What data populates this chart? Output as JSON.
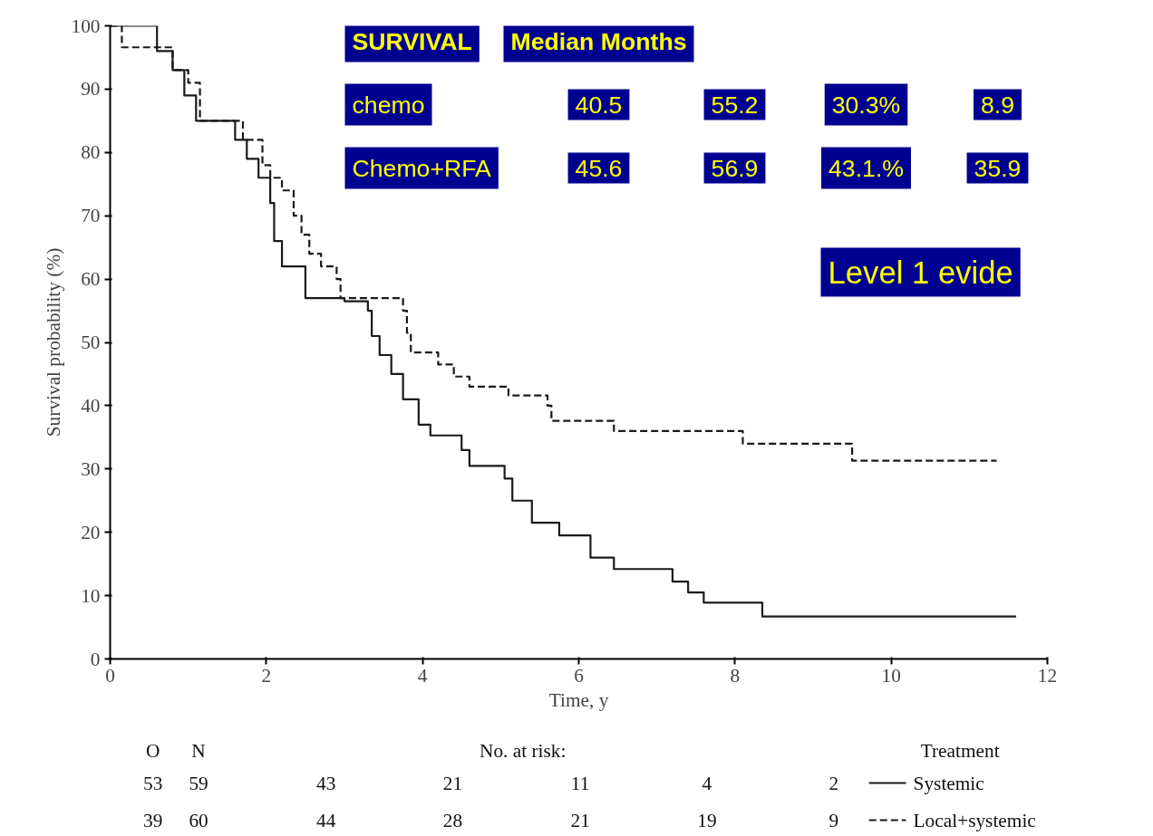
{
  "chart_data": {
    "type": "step",
    "xlabel": "Time, y",
    "ylabel": "Survival probability (%)",
    "xlim": [
      0,
      12
    ],
    "ylim": [
      0,
      100
    ],
    "xticks": [
      0,
      2,
      4,
      6,
      8,
      10,
      12
    ],
    "yticks": [
      0,
      10,
      20,
      30,
      40,
      50,
      60,
      70,
      80,
      90,
      100
    ],
    "grid": false,
    "legend": "bottom right",
    "legend_title": "Treatment",
    "marker": "none",
    "series": [
      {
        "name": "Systemic",
        "color": "#1a1a1a",
        "line_style": "solid",
        "x": [
          0,
          0.6,
          0.8,
          0.95,
          1.1,
          1.6,
          1.75,
          1.9,
          2.05,
          2.1,
          2.2,
          2.5,
          3.0,
          3.3,
          3.35,
          3.45,
          3.6,
          3.75,
          3.95,
          4.1,
          4.5,
          4.6,
          5.05,
          5.15,
          5.4,
          5.75,
          6.15,
          6.45,
          7.2,
          7.4,
          7.6,
          8.35,
          11.6
        ],
        "values": [
          100,
          96,
          93,
          89,
          85,
          82,
          79,
          76,
          72,
          66,
          62,
          57,
          56.5,
          55,
          51,
          48,
          45,
          41,
          37,
          35.3,
          33,
          30.5,
          28.5,
          25,
          21.5,
          19.5,
          16,
          14.2,
          12.2,
          10.5,
          8.9,
          6.7,
          6.7
        ]
      },
      {
        "name": "Local+systemic",
        "color": "#1a1a1a",
        "line_style": "dashed",
        "x": [
          0,
          0.15,
          0.8,
          1.0,
          1.15,
          1.7,
          1.95,
          2.05,
          2.2,
          2.35,
          2.45,
          2.55,
          2.7,
          2.9,
          2.95,
          3.75,
          3.8,
          3.85,
          4.2,
          4.4,
          4.6,
          5.1,
          5.6,
          5.65,
          6.45,
          8.1,
          9.5,
          11.35
        ],
        "values": [
          100,
          96.6,
          93,
          91,
          85,
          82,
          78,
          76,
          74,
          70,
          67,
          64,
          62,
          60,
          57,
          55,
          51.5,
          48.4,
          46.5,
          44.6,
          43,
          41.6,
          40,
          37.6,
          36,
          34,
          31.3,
          31.3
        ]
      }
    ],
    "annotations": [
      "SURVIVAL",
      "Median Months",
      "chemo",
      "40.5",
      "55.2",
      "30.3%",
      "8.9",
      "Chemo+RFA",
      "45.6",
      "56.9",
      "43.1.%",
      "35.9",
      "Level 1 evide",
      "No. at risk:",
      "O",
      "N",
      "53",
      "59",
      "43",
      "21",
      "11",
      "4",
      "2",
      "39",
      "60",
      "44",
      "28",
      "21",
      "19",
      "9"
    ]
  }
}
